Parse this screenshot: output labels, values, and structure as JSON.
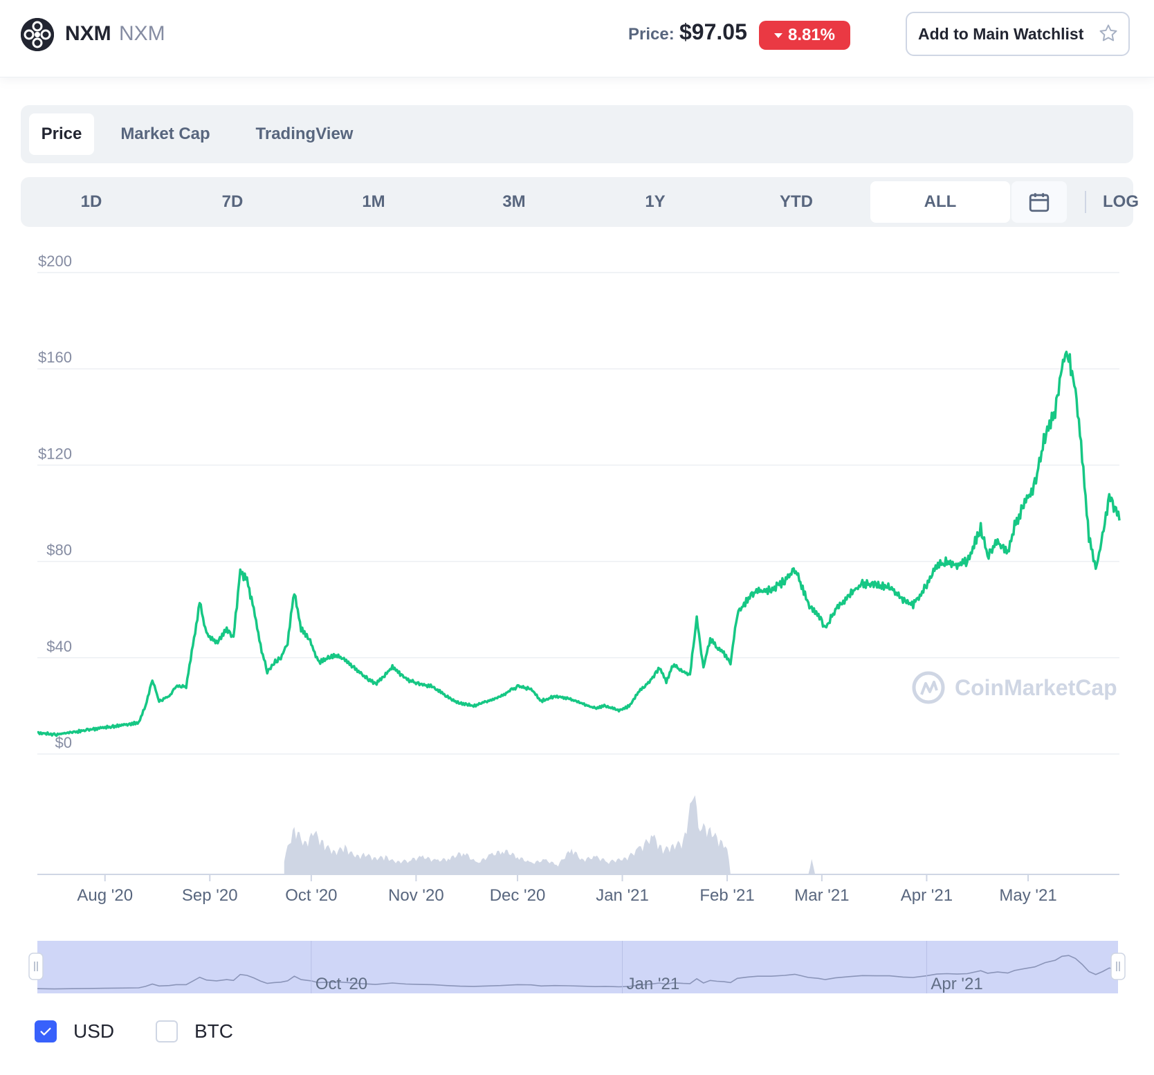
{
  "header": {
    "coin_name": "NXM",
    "coin_symbol": "NXM",
    "price_label": "Price:",
    "price_value": "$97.05",
    "change_value": "8.81%",
    "change_direction": "down",
    "change_color": "#ea3943",
    "watchlist_label": "Add to Main Watchlist"
  },
  "tabs": [
    {
      "label": "Price",
      "active": true
    },
    {
      "label": "Market Cap",
      "active": false
    },
    {
      "label": "TradingView",
      "active": false
    }
  ],
  "ranges": [
    {
      "label": "1D",
      "active": false
    },
    {
      "label": "7D",
      "active": false
    },
    {
      "label": "1M",
      "active": false
    },
    {
      "label": "3M",
      "active": false
    },
    {
      "label": "1Y",
      "active": false
    },
    {
      "label": "YTD",
      "active": false
    },
    {
      "label": "ALL",
      "active": true
    }
  ],
  "log_label": "LOG",
  "watermark": "CoinMarketCap",
  "currency_options": [
    {
      "label": "USD",
      "checked": true
    },
    {
      "label": "BTC",
      "checked": false
    }
  ],
  "chart_data": {
    "type": "line",
    "line_color": "#16c784",
    "volume_color": "#cfd6e4",
    "navigator_fill": "#cfd6f7",
    "grid": true,
    "ylim": [
      0,
      200
    ],
    "yticks": [
      {
        "value": 200,
        "label": "$200"
      },
      {
        "value": 160,
        "label": "$160"
      },
      {
        "value": 120,
        "label": "$120"
      },
      {
        "value": 80,
        "label": "$80"
      },
      {
        "value": 40,
        "label": "$40"
      },
      {
        "value": 0,
        "label": "$0"
      }
    ],
    "xlim": [
      "2020-07-12",
      "2021-05-28"
    ],
    "xticks": [
      {
        "date": "2020-08-01",
        "label": "Aug '20"
      },
      {
        "date": "2020-09-01",
        "label": "Sep '20"
      },
      {
        "date": "2020-10-01",
        "label": "Oct '20"
      },
      {
        "date": "2020-11-01",
        "label": "Nov '20"
      },
      {
        "date": "2020-12-01",
        "label": "Dec '20"
      },
      {
        "date": "2021-01-01",
        "label": "Jan '21"
      },
      {
        "date": "2021-02-01",
        "label": "Feb '21"
      },
      {
        "date": "2021-03-01",
        "label": "Mar '21"
      },
      {
        "date": "2021-04-01",
        "label": "Apr '21"
      },
      {
        "date": "2021-05-01",
        "label": "May '21"
      }
    ],
    "navigator_ticks": [
      {
        "date": "2020-10-01",
        "label": "Oct '20"
      },
      {
        "date": "2021-01-01",
        "label": "Jan '21"
      },
      {
        "date": "2021-04-01",
        "label": "Apr '21"
      }
    ],
    "series": [
      {
        "points": [
          [
            "2020-07-12",
            9
          ],
          [
            "2020-07-17",
            8
          ],
          [
            "2020-07-22",
            9
          ],
          [
            "2020-07-27",
            10
          ],
          [
            "2020-08-01",
            11
          ],
          [
            "2020-08-06",
            12
          ],
          [
            "2020-08-11",
            13
          ],
          [
            "2020-08-13",
            20
          ],
          [
            "2020-08-15",
            31
          ],
          [
            "2020-08-17",
            22
          ],
          [
            "2020-08-20",
            24
          ],
          [
            "2020-08-22",
            28
          ],
          [
            "2020-08-25",
            28
          ],
          [
            "2020-08-27",
            45
          ],
          [
            "2020-08-29",
            63
          ],
          [
            "2020-08-31",
            50
          ],
          [
            "2020-09-03",
            46
          ],
          [
            "2020-09-06",
            52
          ],
          [
            "2020-09-08",
            48
          ],
          [
            "2020-09-10",
            76
          ],
          [
            "2020-09-12",
            72
          ],
          [
            "2020-09-14",
            60
          ],
          [
            "2020-09-16",
            45
          ],
          [
            "2020-09-18",
            34
          ],
          [
            "2020-09-20",
            38
          ],
          [
            "2020-09-22",
            40
          ],
          [
            "2020-09-24",
            46
          ],
          [
            "2020-09-26",
            68
          ],
          [
            "2020-09-28",
            52
          ],
          [
            "2020-10-01",
            46
          ],
          [
            "2020-10-03",
            38
          ],
          [
            "2020-10-06",
            40
          ],
          [
            "2020-10-09",
            41
          ],
          [
            "2020-10-12",
            38
          ],
          [
            "2020-10-16",
            33
          ],
          [
            "2020-10-20",
            29
          ],
          [
            "2020-10-25",
            36
          ],
          [
            "2020-10-29",
            31
          ],
          [
            "2020-11-02",
            29
          ],
          [
            "2020-11-06",
            28
          ],
          [
            "2020-11-10",
            24
          ],
          [
            "2020-11-14",
            21
          ],
          [
            "2020-11-18",
            20
          ],
          [
            "2020-11-22",
            22
          ],
          [
            "2020-11-26",
            24
          ],
          [
            "2020-12-01",
            28
          ],
          [
            "2020-12-05",
            27
          ],
          [
            "2020-12-08",
            22
          ],
          [
            "2020-12-12",
            24
          ],
          [
            "2020-12-16",
            23
          ],
          [
            "2020-12-20",
            21
          ],
          [
            "2020-12-24",
            19
          ],
          [
            "2020-12-27",
            20
          ],
          [
            "2020-12-31",
            18
          ],
          [
            "2021-01-03",
            20
          ],
          [
            "2021-01-06",
            26
          ],
          [
            "2021-01-09",
            30
          ],
          [
            "2021-01-12",
            36
          ],
          [
            "2021-01-14",
            30
          ],
          [
            "2021-01-16",
            37
          ],
          [
            "2021-01-19",
            34
          ],
          [
            "2021-01-21",
            33
          ],
          [
            "2021-01-23",
            56
          ],
          [
            "2021-01-25",
            36
          ],
          [
            "2021-01-27",
            48
          ],
          [
            "2021-01-29",
            44
          ],
          [
            "2021-01-31",
            42
          ],
          [
            "2021-02-02",
            38
          ],
          [
            "2021-02-04",
            58
          ],
          [
            "2021-02-07",
            64
          ],
          [
            "2021-02-10",
            68
          ],
          [
            "2021-02-14",
            68
          ],
          [
            "2021-02-18",
            72
          ],
          [
            "2021-02-21",
            77
          ],
          [
            "2021-02-23",
            70
          ],
          [
            "2021-02-25",
            62
          ],
          [
            "2021-02-28",
            58
          ],
          [
            "2021-03-02",
            52
          ],
          [
            "2021-03-05",
            60
          ],
          [
            "2021-03-09",
            66
          ],
          [
            "2021-03-13",
            71
          ],
          [
            "2021-03-17",
            70
          ],
          [
            "2021-03-21",
            70
          ],
          [
            "2021-03-25",
            64
          ],
          [
            "2021-03-28",
            62
          ],
          [
            "2021-04-01",
            70
          ],
          [
            "2021-04-04",
            78
          ],
          [
            "2021-04-07",
            80
          ],
          [
            "2021-04-10",
            78
          ],
          [
            "2021-04-13",
            80
          ],
          [
            "2021-04-17",
            94
          ],
          [
            "2021-04-19",
            82
          ],
          [
            "2021-04-22",
            88
          ],
          [
            "2021-04-25",
            83
          ],
          [
            "2021-04-27",
            95
          ],
          [
            "2021-04-30",
            104
          ],
          [
            "2021-05-03",
            112
          ],
          [
            "2021-05-06",
            132
          ],
          [
            "2021-05-09",
            143
          ],
          [
            "2021-05-11",
            162
          ],
          [
            "2021-05-13",
            166
          ],
          [
            "2021-05-15",
            152
          ],
          [
            "2021-05-17",
            124
          ],
          [
            "2021-05-19",
            90
          ],
          [
            "2021-05-21",
            76
          ],
          [
            "2021-05-23",
            90
          ],
          [
            "2021-05-25",
            107
          ],
          [
            "2021-05-27",
            101
          ],
          [
            "2021-05-28",
            97
          ]
        ]
      }
    ],
    "volume_points": [
      [
        "2020-09-23",
        20
      ],
      [
        "2020-09-26",
        58
      ],
      [
        "2020-09-29",
        38
      ],
      [
        "2020-10-02",
        52
      ],
      [
        "2020-10-05",
        36
      ],
      [
        "2020-10-08",
        28
      ],
      [
        "2020-10-11",
        34
      ],
      [
        "2020-10-14",
        22
      ],
      [
        "2020-10-17",
        25
      ],
      [
        "2020-10-20",
        20
      ],
      [
        "2020-10-23",
        22
      ],
      [
        "2020-10-26",
        15
      ],
      [
        "2020-10-30",
        18
      ],
      [
        "2020-11-03",
        22
      ],
      [
        "2020-11-07",
        17
      ],
      [
        "2020-11-11",
        20
      ],
      [
        "2020-11-15",
        28
      ],
      [
        "2020-11-19",
        14
      ],
      [
        "2020-11-23",
        24
      ],
      [
        "2020-11-27",
        30
      ],
      [
        "2020-12-01",
        22
      ],
      [
        "2020-12-05",
        14
      ],
      [
        "2020-12-09",
        18
      ],
      [
        "2020-12-13",
        12
      ],
      [
        "2020-12-17",
        32
      ],
      [
        "2020-12-20",
        18
      ],
      [
        "2020-12-24",
        22
      ],
      [
        "2020-12-28",
        16
      ],
      [
        "2021-01-02",
        20
      ],
      [
        "2021-01-06",
        32
      ],
      [
        "2021-01-10",
        48
      ],
      [
        "2021-01-13",
        30
      ],
      [
        "2021-01-16",
        36
      ],
      [
        "2021-01-19",
        40
      ],
      [
        "2021-01-22",
        100
      ],
      [
        "2021-01-24",
        60
      ],
      [
        "2021-01-27",
        55
      ],
      [
        "2021-01-30",
        40
      ],
      [
        "2021-02-01",
        35
      ],
      [
        "2021-02-02",
        0
      ],
      [
        "2021-02-25",
        0
      ],
      [
        "2021-02-26",
        18
      ],
      [
        "2021-02-27",
        0
      ]
    ]
  }
}
